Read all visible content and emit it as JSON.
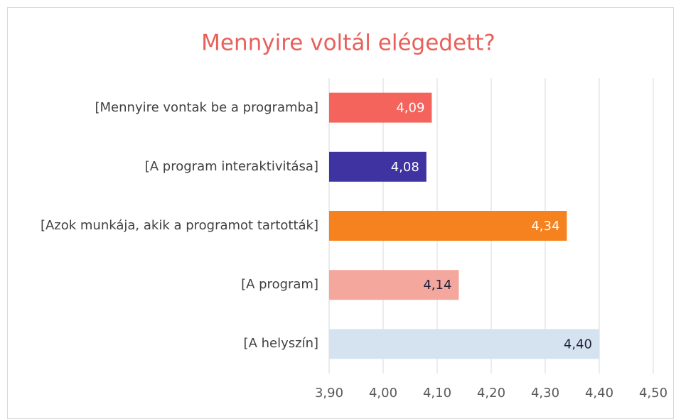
{
  "chart_data": {
    "type": "bar",
    "orientation": "horizontal",
    "title": "Mennyire voltál elégedett?",
    "categories": [
      "[Mennyire vontak be a programba]",
      "[A program interaktivitása]",
      "[Azok munkája, akik a programot tartották]",
      "[A program]",
      "[A helyszín]"
    ],
    "values": [
      4.09,
      4.08,
      4.34,
      4.14,
      4.4
    ],
    "value_labels": [
      "4,09",
      "4,08",
      "4,34",
      "4,14",
      "4,40"
    ],
    "colors": [
      "#f4645c",
      "#3e33a0",
      "#f5821f",
      "#f4a79d",
      "#d5e2f0"
    ],
    "value_label_colors": [
      "#ffffff",
      "#ffffff",
      "#ffffff",
      "#1f1f3a",
      "#1f1f3a"
    ],
    "xlim": [
      3.9,
      4.5
    ],
    "xticks": [
      {
        "value": 3.9,
        "label": "3,90"
      },
      {
        "value": 4.0,
        "label": "4,00"
      },
      {
        "value": 4.1,
        "label": "4,10"
      },
      {
        "value": 4.2,
        "label": "4,20"
      },
      {
        "value": 4.3,
        "label": "4,30"
      },
      {
        "value": 4.4,
        "label": "4,40"
      },
      {
        "value": 4.5,
        "label": "4,50"
      }
    ],
    "grid": true
  }
}
